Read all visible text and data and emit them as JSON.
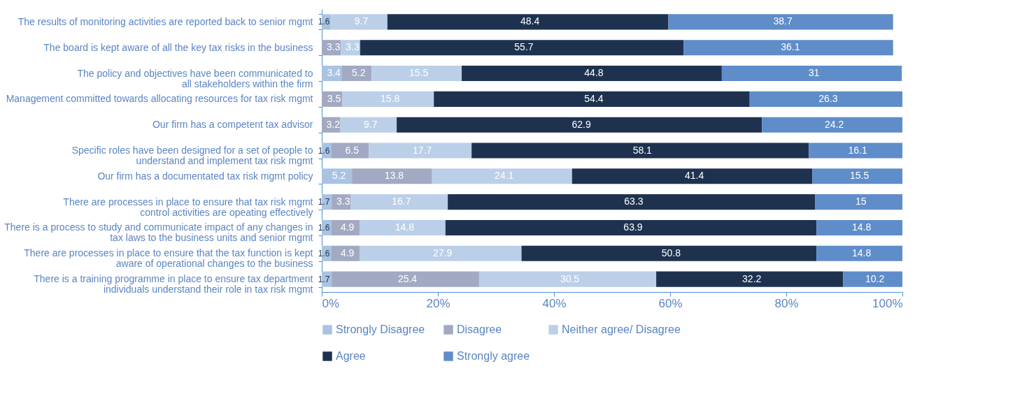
{
  "chart_data": {
    "type": "bar",
    "orientation": "horizontal",
    "stacked": true,
    "data_labels": true,
    "grid": false,
    "legend": "bottom",
    "categories": [
      "The results of monitoring activities are reported back to senior mgmt",
      "The board is kept aware of all the key tax risks in the business",
      "The policy and objectives have been communicated to all stakeholders within the firm",
      "Management committed towards allocating resources for tax risk mgmt",
      "Our firm has a competent tax advisor",
      "Specific roles have been designed for a set of people to understand and implement tax risk mgmt",
      "Our firm has a documentated tax risk mgmt policy",
      "There are processes in place to ensure that tax risk mgmt control activities are opeating effectively",
      "There is a process to study and communicate impact of any changes in tax laws to the business units and senior mgmt",
      "There are processes in place to ensure that the tax function is kept aware of operational changes to the business",
      "There is a training programme in place to ensure tax department individuals understand their role in tax risk mgmt"
    ],
    "xlim": [
      0,
      100
    ],
    "xticks": [
      {
        "value": 0,
        "label": "0%"
      },
      {
        "value": 20,
        "label": "20%"
      },
      {
        "value": 40,
        "label": "40%"
      },
      {
        "value": 60,
        "label": "60%"
      },
      {
        "value": 80,
        "label": "80%"
      },
      {
        "value": 100,
        "label": "100%"
      }
    ],
    "series": [
      {
        "name": "Strongly Disagree",
        "color": "#a9c3e3",
        "values": [
          1.6,
          null,
          3.4,
          null,
          null,
          1.6,
          5.2,
          1.7,
          1.6,
          1.6,
          1.7
        ]
      },
      {
        "name": "Disagree",
        "color": "#a2a9c2",
        "values": [
          null,
          3.3,
          5.2,
          3.5,
          3.2,
          6.5,
          13.8,
          3.3,
          4.9,
          4.9,
          25.4
        ]
      },
      {
        "name": "Neither agree/ Disagree",
        "color": "#bccfe8",
        "values": [
          9.7,
          3.3,
          15.5,
          15.8,
          9.7,
          17.7,
          24.1,
          16.7,
          14.8,
          27.9,
          30.5
        ]
      },
      {
        "name": "Agree",
        "color": "#1e3250",
        "values": [
          48.4,
          55.7,
          44.8,
          54.4,
          62.9,
          58.1,
          41.4,
          63.3,
          63.9,
          50.8,
          32.2
        ]
      },
      {
        "name": "Strongly agree",
        "color": "#5f8dc9",
        "values": [
          38.7,
          36.1,
          31,
          26.3,
          24.2,
          16.1,
          15.5,
          15,
          14.8,
          14.8,
          10.2
        ]
      }
    ]
  }
}
